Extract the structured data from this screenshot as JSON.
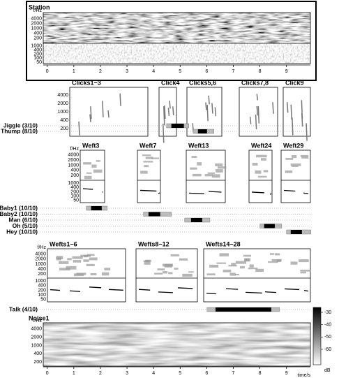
{
  "time_axis": {
    "range": [
      -0.15,
      9.9
    ],
    "ticks": [
      0,
      1,
      2,
      3,
      4,
      5,
      6,
      7,
      8,
      9
    ],
    "label": "time/s"
  },
  "freq_label": "f/Hz",
  "freq_ticks": [
    "4000",
    "2000",
    "1000",
    "400",
    "200"
  ],
  "period_ticks": [
    "1000",
    "400",
    "200",
    "100",
    "50"
  ],
  "station": {
    "title": "Station"
  },
  "click_panels": [
    {
      "title": "Clicks1−3"
    },
    {
      "title": "Click4"
    },
    {
      "title": "Clicks5,6"
    },
    {
      "title": "Clicks7,8"
    },
    {
      "title": "Click9"
    }
  ],
  "click_tracks": [
    {
      "label": "Jiggle (3/10)",
      "outer": [
        4.49,
        5.33
      ],
      "core": [
        4.67,
        5.14
      ]
    },
    {
      "label": "Thump (8/10)",
      "outer": [
        5.49,
        6.27
      ],
      "core": [
        5.67,
        6.01
      ]
    }
  ],
  "weft_panels": [
    {
      "title": "Weft3"
    },
    {
      "title": "Weft7"
    },
    {
      "title": "Weft13"
    },
    {
      "title": "Weft24"
    },
    {
      "title": "Weft29"
    }
  ],
  "weft_tracks": [
    {
      "label": "Baby1 (10/10)",
      "outer": [
        1.47,
        2.26
      ],
      "core": [
        1.65,
        2.05
      ]
    },
    {
      "label": "Baby2 (10/10)",
      "outer": [
        3.62,
        4.67
      ],
      "core": [
        3.81,
        4.25
      ]
    },
    {
      "label": "Man (6/10)",
      "outer": [
        5.17,
        6.12
      ],
      "core": [
        5.41,
        5.83
      ]
    },
    {
      "label": "Oh (5/10)",
      "outer": [
        8.0,
        8.82
      ],
      "core": [
        8.16,
        8.56
      ]
    },
    {
      "label": "Hey (10/10)",
      "outer": [
        9.0,
        9.92
      ],
      "core": [
        9.16,
        9.58
      ]
    }
  ],
  "weft_groups": [
    {
      "title": "Wefts1−6"
    },
    {
      "title": "Wefts8−12"
    },
    {
      "title": "Wefts14−28"
    }
  ],
  "talk_track": {
    "label": "Talk (4/10)",
    "outer": [
      6.01,
      8.74
    ],
    "core": [
      6.33,
      8.43
    ]
  },
  "noise": {
    "title": "Noise1"
  },
  "colorbar": {
    "range": [
      -26,
      -72.5
    ],
    "ticks": [
      -30,
      -40,
      -50,
      -60
    ],
    "unit": "dB"
  }
}
